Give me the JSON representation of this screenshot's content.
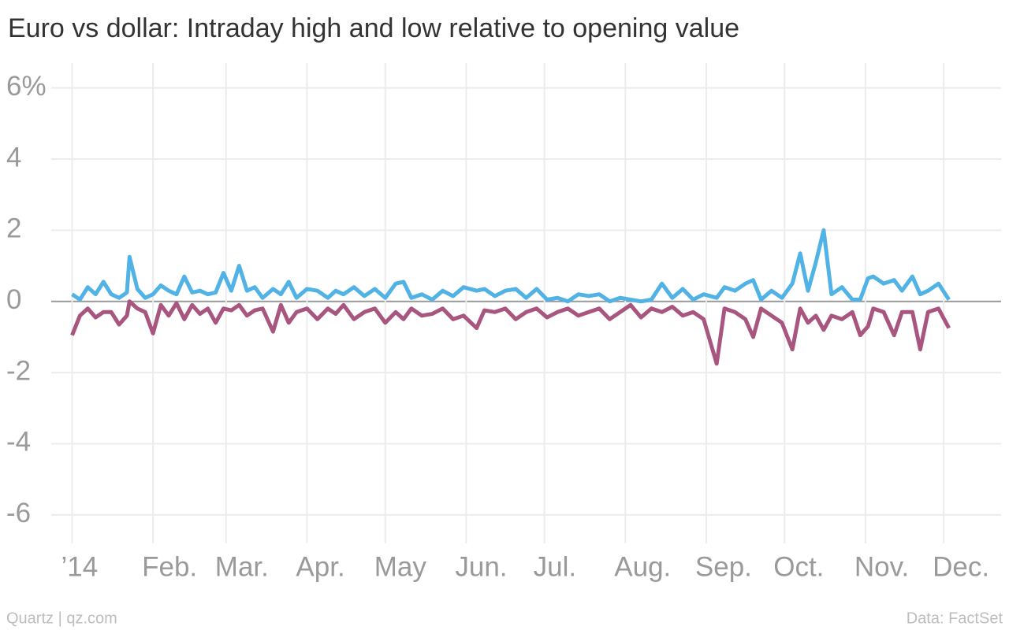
{
  "chart_data": {
    "type": "line",
    "title": "Euro vs dollar: Intraday high and low relative to opening value",
    "source_left": "Quartz | qz.com",
    "source_right": "Data: FactSet",
    "x": [
      0,
      3,
      6,
      9,
      12,
      15,
      18,
      21,
      22,
      25,
      28,
      31,
      34,
      37,
      40,
      43,
      46,
      49,
      52,
      55,
      58,
      61,
      64,
      67,
      70,
      73,
      77,
      80,
      83,
      86,
      90,
      94,
      98,
      101,
      104,
      108,
      112,
      116,
      120,
      124,
      127,
      130,
      134,
      138,
      142,
      146,
      150,
      155,
      158,
      162,
      166,
      170,
      174,
      178,
      182,
      186,
      190,
      194,
      198,
      202,
      206,
      210,
      214,
      218,
      222,
      226,
      230,
      234,
      238,
      242,
      247,
      250,
      254,
      258,
      261,
      264,
      268,
      272,
      276,
      279,
      282,
      285,
      288,
      291,
      295,
      299,
      302,
      305,
      307,
      311,
      315,
      318,
      322,
      325,
      328,
      332,
      336
    ],
    "series": [
      {
        "color": "#51b2e5",
        "values": [
          0.2,
          0.05,
          0.4,
          0.2,
          0.55,
          0.2,
          0.1,
          0.25,
          1.25,
          0.35,
          0.1,
          0.2,
          0.45,
          0.3,
          0.2,
          0.7,
          0.25,
          0.3,
          0.2,
          0.25,
          0.8,
          0.3,
          1.0,
          0.3,
          0.4,
          0.1,
          0.35,
          0.2,
          0.55,
          0.1,
          0.35,
          0.3,
          0.1,
          0.3,
          0.2,
          0.4,
          0.15,
          0.35,
          0.1,
          0.5,
          0.55,
          0.1,
          0.2,
          0.05,
          0.3,
          0.15,
          0.4,
          0.3,
          0.35,
          0.15,
          0.3,
          0.35,
          0.1,
          0.35,
          0.05,
          0.1,
          0.0,
          0.2,
          0.15,
          0.2,
          0.0,
          0.1,
          0.05,
          0.0,
          0.05,
          0.5,
          0.1,
          0.35,
          0.05,
          0.2,
          0.1,
          0.4,
          0.3,
          0.5,
          0.6,
          0.05,
          0.3,
          0.1,
          0.5,
          1.35,
          0.3,
          1.1,
          2.0,
          0.2,
          0.4,
          0.05,
          0.05,
          0.65,
          0.7,
          0.5,
          0.6,
          0.3,
          0.7,
          0.2,
          0.3,
          0.5,
          0.05
        ]
      },
      {
        "color": "#a8567f",
        "values": [
          -0.95,
          -0.4,
          -0.2,
          -0.45,
          -0.3,
          -0.3,
          -0.65,
          -0.4,
          0.0,
          -0.2,
          -0.3,
          -0.9,
          -0.1,
          -0.4,
          -0.05,
          -0.5,
          -0.1,
          -0.35,
          -0.2,
          -0.6,
          -0.2,
          -0.25,
          -0.1,
          -0.4,
          -0.25,
          -0.2,
          -0.85,
          -0.1,
          -0.6,
          -0.3,
          -0.2,
          -0.5,
          -0.2,
          -0.35,
          -0.1,
          -0.5,
          -0.3,
          -0.2,
          -0.6,
          -0.3,
          -0.5,
          -0.2,
          -0.4,
          -0.35,
          -0.2,
          -0.5,
          -0.4,
          -0.75,
          -0.25,
          -0.3,
          -0.2,
          -0.5,
          -0.3,
          -0.2,
          -0.45,
          -0.3,
          -0.2,
          -0.4,
          -0.3,
          -0.2,
          -0.5,
          -0.3,
          -0.1,
          -0.45,
          -0.2,
          -0.3,
          -0.15,
          -0.4,
          -0.3,
          -0.5,
          -1.75,
          -0.2,
          -0.3,
          -0.5,
          -1.0,
          -0.2,
          -0.4,
          -0.6,
          -1.35,
          -0.2,
          -0.6,
          -0.4,
          -0.8,
          -0.4,
          -0.5,
          -0.3,
          -0.95,
          -0.7,
          -0.2,
          -0.3,
          -0.95,
          -0.3,
          -0.3,
          -1.35,
          -0.3,
          -0.2,
          -0.75
        ]
      }
    ],
    "xlim": [
      -8,
      356
    ],
    "xticks": [
      {
        "value": 0,
        "label": "’14"
      },
      {
        "value": 31,
        "label": "Feb."
      },
      {
        "value": 59,
        "label": "Mar."
      },
      {
        "value": 90,
        "label": "Apr."
      },
      {
        "value": 120,
        "label": "May"
      },
      {
        "value": 151,
        "label": "Jun."
      },
      {
        "value": 181,
        "label": "Jul."
      },
      {
        "value": 212,
        "label": "Aug."
      },
      {
        "value": 243,
        "label": "Sep."
      },
      {
        "value": 273,
        "label": "Oct."
      },
      {
        "value": 304,
        "label": "Nov."
      },
      {
        "value": 334,
        "label": "Dec."
      }
    ],
    "ylim": [
      -6.8,
      6.7
    ],
    "yticks": [
      {
        "value": 6,
        "label": "6%"
      },
      4,
      2,
      0,
      -2,
      -4,
      -6
    ],
    "grid": true
  }
}
